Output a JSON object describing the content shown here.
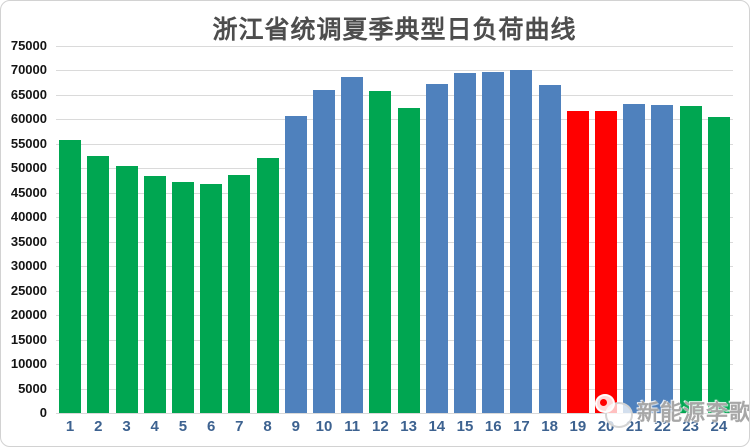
{
  "chart_data": {
    "type": "bar",
    "title": "浙江省统调夏季典型日负荷曲线",
    "categories": [
      "1",
      "2",
      "3",
      "4",
      "5",
      "6",
      "7",
      "8",
      "9",
      "10",
      "11",
      "12",
      "13",
      "14",
      "15",
      "16",
      "17",
      "18",
      "19",
      "20",
      "21",
      "22",
      "23",
      "24"
    ],
    "values": [
      55800,
      52600,
      50400,
      48500,
      47200,
      46800,
      48600,
      52100,
      60700,
      66000,
      68600,
      65800,
      62400,
      67200,
      69400,
      69700,
      70100,
      67100,
      61800,
      61700,
      63200,
      62900,
      62800,
      60400
    ],
    "bar_color_keys": [
      "green",
      "green",
      "green",
      "green",
      "green",
      "green",
      "green",
      "green",
      "blue",
      "blue",
      "blue",
      "green",
      "green",
      "blue",
      "blue",
      "blue",
      "blue",
      "blue",
      "red",
      "red",
      "blue",
      "blue",
      "green",
      "green"
    ],
    "palette": {
      "green": "#00A651",
      "blue": "#4F81BD",
      "red": "#FF0000"
    },
    "xlabel": "",
    "ylabel": "",
    "ylim": [
      0,
      75000
    ],
    "ytick_step": 5000,
    "ytick_labels": [
      "0",
      "5000",
      "10000",
      "15000",
      "20000",
      "25000",
      "30000",
      "35000",
      "40000",
      "45000",
      "50000",
      "55000",
      "60000",
      "65000",
      "70000",
      "75000"
    ],
    "grid": true,
    "legend": "none",
    "axis_colors": {
      "x_label": "#3D6290",
      "y_label": "#141414",
      "grid": "#DADADA"
    }
  },
  "watermark": {
    "text": "新能源李歌",
    "logo": "doodle-mascot-icon",
    "dot_color": "#FF0000"
  }
}
